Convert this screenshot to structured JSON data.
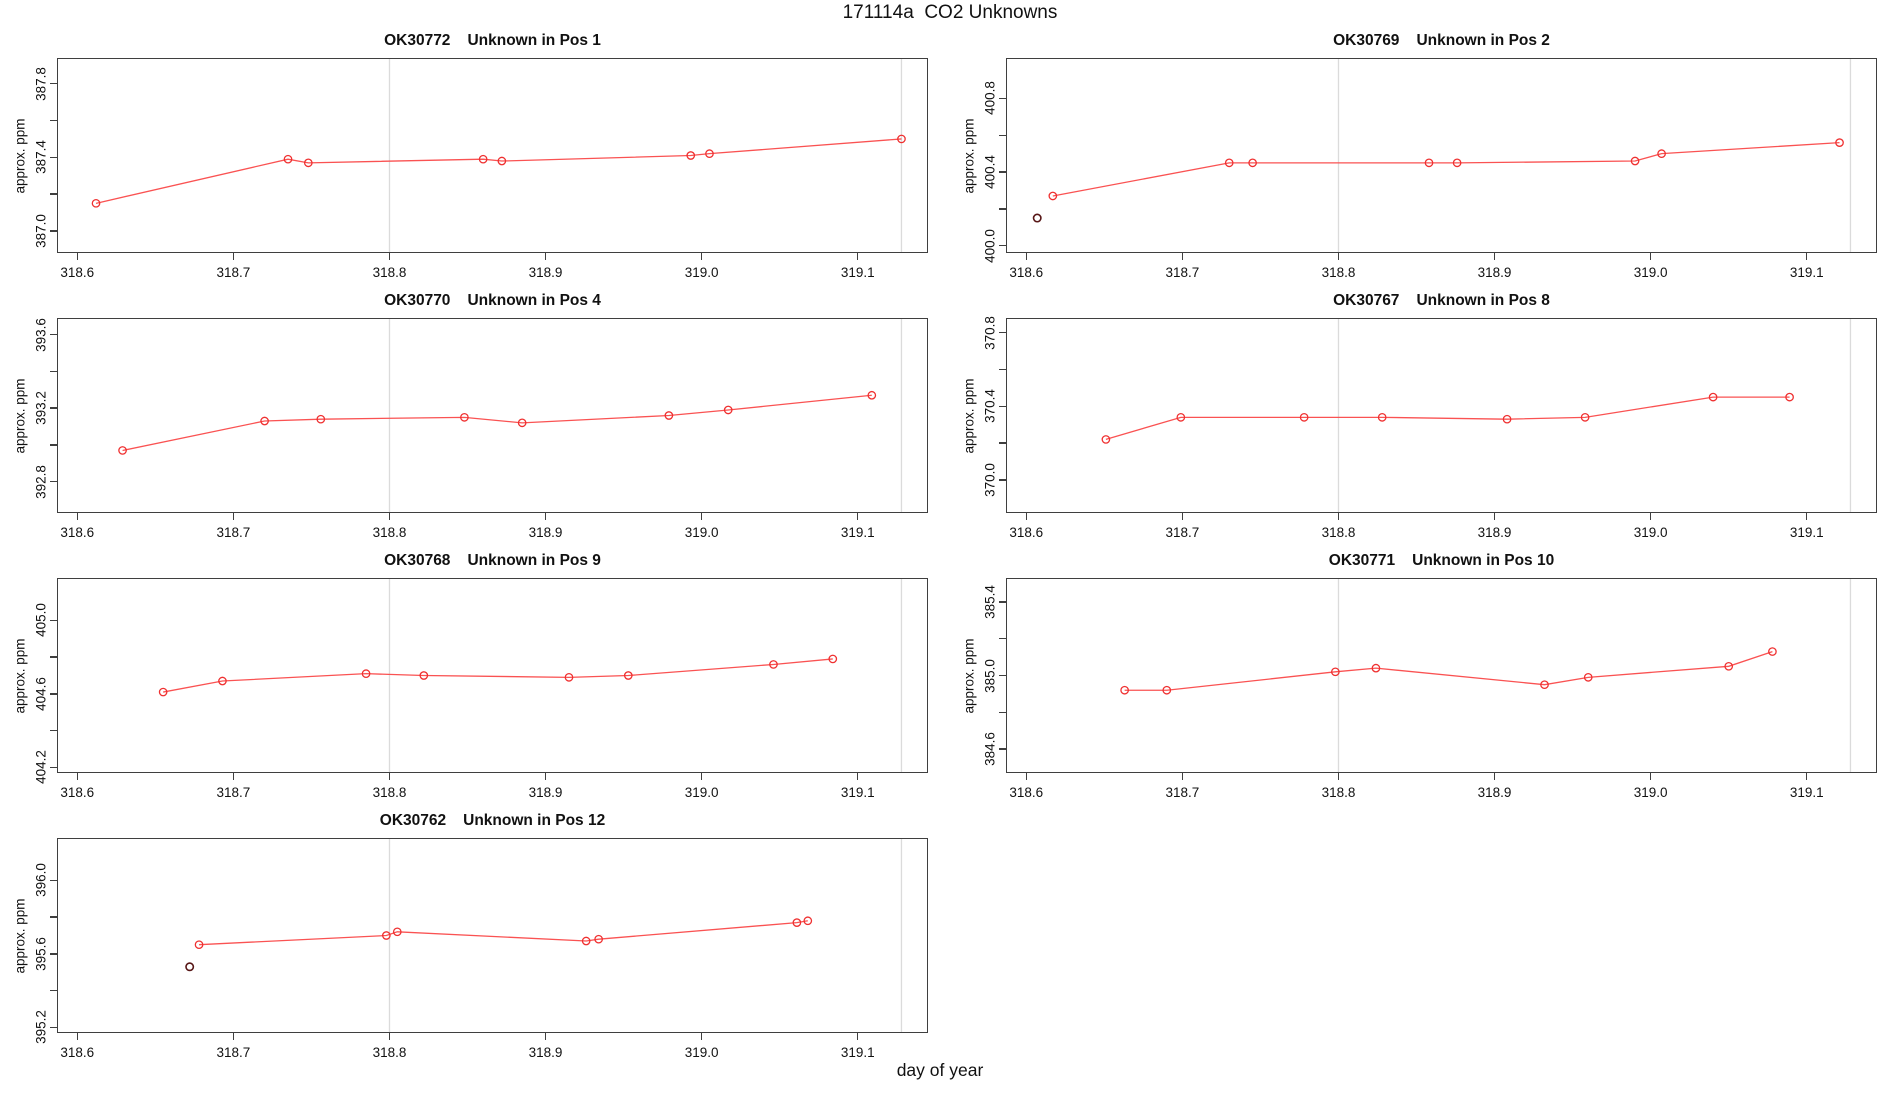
{
  "title": "171114a  CO2 Unknowns",
  "xlabel": "day of year",
  "ylabel": "approx. ppm",
  "colors": {
    "series_line": "#fa5252",
    "series_point": "#ef3030",
    "outlier_point": "#571616",
    "reference_line": "#dbdbdb",
    "axis_box": "#3f3f3f",
    "text": "#111111"
  },
  "axis": {
    "xlim": [
      318.587,
      319.145
    ],
    "x_ticks": [
      {
        "value": 318.6,
        "label": "318.6"
      },
      {
        "value": 318.7,
        "label": "318.7"
      },
      {
        "value": 318.8,
        "label": "318.8"
      },
      {
        "value": 318.9,
        "label": "318.9"
      },
      {
        "value": 319.0,
        "label": "319.0"
      },
      {
        "value": 319.1,
        "label": "319.1"
      }
    ],
    "reference_lines_x": [
      318.8,
      319.128
    ],
    "grid": "off",
    "legend": "none"
  },
  "chart_data": [
    {
      "type": "line",
      "title_code": "OK30772",
      "title_label": "Unknown in Pos 1",
      "grid": {
        "row": 0,
        "col": 0
      },
      "ylim": [
        386.88,
        387.94
      ],
      "y_ticks": [
        {
          "value": 387.0,
          "label": "387.0"
        },
        {
          "value": 387.2,
          "label": ""
        },
        {
          "value": 387.4,
          "label": "387.4"
        },
        {
          "value": 387.6,
          "label": ""
        },
        {
          "value": 387.8,
          "label": "387.8"
        }
      ],
      "x": [
        318.612,
        318.735,
        318.748,
        318.86,
        318.872,
        318.993,
        319.005,
        319.128
      ],
      "y": [
        387.15,
        387.39,
        387.37,
        387.39,
        387.38,
        387.41,
        387.42,
        387.5
      ],
      "outlier": null
    },
    {
      "type": "line",
      "title_code": "OK30769",
      "title_label": "Unknown in Pos 2",
      "grid": {
        "row": 0,
        "col": 1
      },
      "ylim": [
        399.96,
        401.02
      ],
      "y_ticks": [
        {
          "value": 400.0,
          "label": "400.0"
        },
        {
          "value": 400.2,
          "label": ""
        },
        {
          "value": 400.4,
          "label": "400.4"
        },
        {
          "value": 400.6,
          "label": ""
        },
        {
          "value": 400.8,
          "label": "400.8"
        }
      ],
      "x": [
        318.617,
        318.73,
        318.745,
        318.858,
        318.876,
        318.99,
        319.007,
        319.121
      ],
      "y": [
        400.27,
        400.45,
        400.45,
        400.45,
        400.45,
        400.46,
        400.5,
        400.56
      ],
      "outlier": {
        "x": 318.607,
        "y": 400.15
      }
    },
    {
      "type": "line",
      "title_code": "OK30770",
      "title_label": "Unknown in Pos 4",
      "grid": {
        "row": 1,
        "col": 0
      },
      "ylim": [
        392.63,
        393.69
      ],
      "y_ticks": [
        {
          "value": 392.8,
          "label": "392.8"
        },
        {
          "value": 393.0,
          "label": ""
        },
        {
          "value": 393.2,
          "label": "393.2"
        },
        {
          "value": 393.4,
          "label": ""
        },
        {
          "value": 393.6,
          "label": "393.6"
        }
      ],
      "x": [
        318.629,
        318.72,
        318.756,
        318.848,
        318.885,
        318.979,
        319.017,
        319.109
      ],
      "y": [
        392.97,
        393.13,
        393.14,
        393.15,
        393.12,
        393.16,
        393.19,
        393.27
      ],
      "outlier": null
    },
    {
      "type": "line",
      "title_code": "OK30767",
      "title_label": "Unknown in Pos 8",
      "grid": {
        "row": 1,
        "col": 1
      },
      "ylim": [
        369.82,
        370.88
      ],
      "y_ticks": [
        {
          "value": 370.0,
          "label": "370.0"
        },
        {
          "value": 370.2,
          "label": ""
        },
        {
          "value": 370.4,
          "label": "370.4"
        },
        {
          "value": 370.6,
          "label": ""
        },
        {
          "value": 370.8,
          "label": "370.8"
        }
      ],
      "x": [
        318.651,
        318.699,
        318.778,
        318.828,
        318.908,
        318.958,
        319.04,
        319.089
      ],
      "y": [
        370.22,
        370.34,
        370.34,
        370.34,
        370.33,
        370.34,
        370.45,
        370.45
      ],
      "outlier": null
    },
    {
      "type": "line",
      "title_code": "OK30768",
      "title_label": "Unknown in Pos 9",
      "grid": {
        "row": 2,
        "col": 0
      },
      "ylim": [
        404.17,
        405.23
      ],
      "y_ticks": [
        {
          "value": 404.2,
          "label": "404.2"
        },
        {
          "value": 404.4,
          "label": ""
        },
        {
          "value": 404.6,
          "label": "404.6"
        },
        {
          "value": 404.8,
          "label": ""
        },
        {
          "value": 405.0,
          "label": "405.0"
        }
      ],
      "x": [
        318.655,
        318.693,
        318.785,
        318.822,
        318.915,
        318.953,
        319.046,
        319.084
      ],
      "y": [
        404.61,
        404.67,
        404.71,
        404.7,
        404.69,
        404.7,
        404.76,
        404.79
      ],
      "outlier": null
    },
    {
      "type": "line",
      "title_code": "OK30771",
      "title_label": "Unknown in Pos 10",
      "grid": {
        "row": 2,
        "col": 1
      },
      "ylim": [
        384.47,
        385.53
      ],
      "y_ticks": [
        {
          "value": 384.6,
          "label": "384.6"
        },
        {
          "value": 384.8,
          "label": ""
        },
        {
          "value": 385.0,
          "label": "385.0"
        },
        {
          "value": 385.2,
          "label": ""
        },
        {
          "value": 385.4,
          "label": "385.4"
        }
      ],
      "x": [
        318.663,
        318.69,
        318.798,
        318.824,
        318.932,
        318.96,
        319.05,
        319.078
      ],
      "y": [
        384.92,
        384.92,
        385.02,
        385.04,
        384.95,
        384.99,
        385.05,
        385.13
      ],
      "outlier": null
    },
    {
      "type": "line",
      "title_code": "OK30762",
      "title_label": "Unknown in Pos 12",
      "grid": {
        "row": 3,
        "col": 0
      },
      "ylim": [
        395.17,
        396.23
      ],
      "y_ticks": [
        {
          "value": 395.2,
          "label": "395.2"
        },
        {
          "value": 395.4,
          "label": ""
        },
        {
          "value": 395.6,
          "label": "395.6"
        },
        {
          "value": 395.8,
          "label": ""
        },
        {
          "value": 396.0,
          "label": "396.0"
        }
      ],
      "x": [
        318.678,
        318.798,
        318.805,
        318.926,
        318.934,
        319.061,
        319.068
      ],
      "y": [
        395.65,
        395.7,
        395.72,
        395.67,
        395.68,
        395.77,
        395.78
      ],
      "outlier": {
        "x": 318.672,
        "y": 395.53
      }
    }
  ]
}
